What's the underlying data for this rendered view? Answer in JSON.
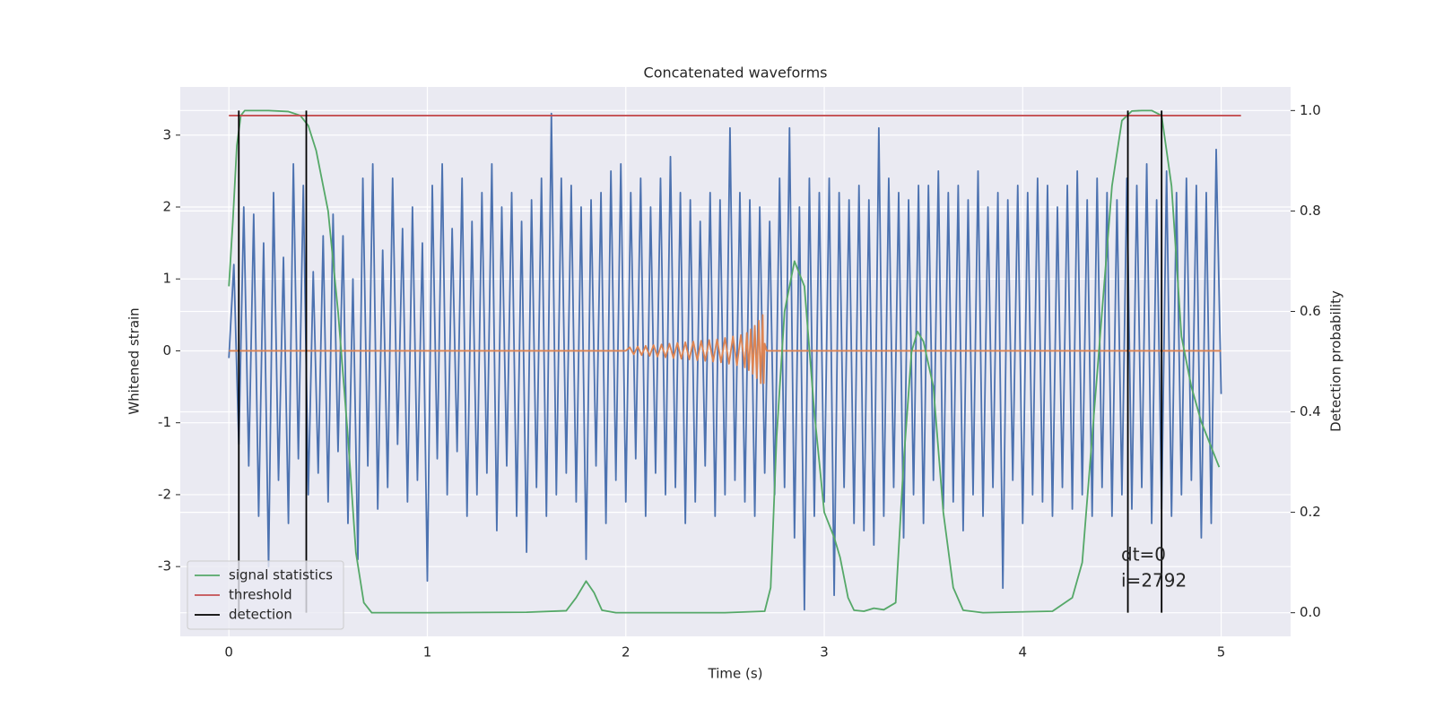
{
  "chart_data": {
    "type": "line",
    "title": "Concatenated waveforms",
    "xlabel": "Time (s)",
    "ylabel": "Whitened strain",
    "y2label": "Detection probability",
    "xlim": [
      -0.245,
      5.35
    ],
    "ylim": [
      -3.97,
      3.67
    ],
    "y2lim": [
      -0.047,
      1.047
    ],
    "xticks": [
      0,
      1,
      2,
      3,
      4,
      5
    ],
    "yticks": [
      -3,
      -2,
      -1,
      0,
      1,
      2,
      3
    ],
    "y2ticks": [
      {
        "value": 0,
        "label": "0.0"
      },
      0.2,
      0.4,
      0.6,
      0.8,
      {
        "value": 1,
        "label": "1.0"
      }
    ],
    "grid": true,
    "legend": "lower left",
    "annotations": [
      "dt=0",
      "i=2792"
    ],
    "series": [
      {
        "color": "#4c72b0",
        "x": [
          0,
          0.025,
          0.05,
          0.075,
          0.1,
          0.125,
          0.15,
          0.175,
          0.2,
          0.225,
          0.25,
          0.275,
          0.3,
          0.325,
          0.35,
          0.375,
          0.4,
          0.425,
          0.45,
          0.475,
          0.5,
          0.525,
          0.55,
          0.575,
          0.6,
          0.625,
          0.65,
          0.675,
          0.7,
          0.725,
          0.75,
          0.775,
          0.8,
          0.825,
          0.85,
          0.875,
          0.9,
          0.925,
          0.95,
          0.975,
          1,
          1.025,
          1.05,
          1.075,
          1.1,
          1.125,
          1.15,
          1.175,
          1.2,
          1.225,
          1.25,
          1.275,
          1.3,
          1.325,
          1.35,
          1.375,
          1.4,
          1.425,
          1.45,
          1.475,
          1.5,
          1.525,
          1.55,
          1.575,
          1.6,
          1.625,
          1.65,
          1.675,
          1.7,
          1.725,
          1.75,
          1.775,
          1.8,
          1.825,
          1.85,
          1.875,
          1.9,
          1.925,
          1.95,
          1.975,
          2,
          2.025,
          2.05,
          2.075,
          2.1,
          2.125,
          2.15,
          2.175,
          2.2,
          2.225,
          2.25,
          2.275,
          2.3,
          2.325,
          2.35,
          2.375,
          2.4,
          2.425,
          2.45,
          2.475,
          2.5,
          2.525,
          2.55,
          2.575,
          2.6,
          2.625,
          2.65,
          2.675,
          2.7,
          2.725,
          2.75,
          2.775,
          2.8,
          2.825,
          2.85,
          2.875,
          2.9,
          2.925,
          2.95,
          2.975,
          3,
          3.025,
          3.05,
          3.075,
          3.1,
          3.125,
          3.15,
          3.175,
          3.2,
          3.225,
          3.25,
          3.275,
          3.3,
          3.325,
          3.35,
          3.375,
          3.4,
          3.425,
          3.45,
          3.475,
          3.5,
          3.525,
          3.55,
          3.575,
          3.6,
          3.625,
          3.65,
          3.675,
          3.7,
          3.725,
          3.75,
          3.775,
          3.8,
          3.825,
          3.85,
          3.875,
          3.9,
          3.925,
          3.95,
          3.975,
          4,
          4.025,
          4.05,
          4.075,
          4.1,
          4.125,
          4.15,
          4.175,
          4.2,
          4.225,
          4.25,
          4.275,
          4.3,
          4.325,
          4.35,
          4.375,
          4.4,
          4.425,
          4.45,
          4.475,
          4.5,
          4.525,
          4.55,
          4.575,
          4.6,
          4.625,
          4.65,
          4.675,
          4.7,
          4.725,
          4.75,
          4.775,
          4.8,
          4.825,
          4.85,
          4.875,
          4.9,
          4.925,
          4.95,
          4.975,
          5
        ],
        "values": [
          -0.1,
          1.2,
          -1.3,
          2.0,
          -1.6,
          1.9,
          -2.3,
          1.5,
          -3.0,
          2.2,
          -1.8,
          1.3,
          -2.4,
          2.6,
          -1.5,
          2.3,
          -2.0,
          1.1,
          -1.7,
          1.6,
          -2.1,
          1.9,
          -1.4,
          1.6,
          -2.4,
          1.0,
          -2.9,
          2.4,
          -1.6,
          2.6,
          -2.2,
          1.4,
          -1.9,
          2.4,
          -1.3,
          1.7,
          -2.1,
          2.0,
          -1.8,
          1.5,
          -3.2,
          2.3,
          -1.5,
          2.6,
          -2.0,
          1.7,
          -1.4,
          2.4,
          -2.3,
          1.8,
          -2.0,
          2.2,
          -1.7,
          2.6,
          -2.5,
          2.0,
          -1.6,
          2.2,
          -2.3,
          1.8,
          -2.8,
          2.1,
          -1.9,
          2.4,
          -2.3,
          3.3,
          -2.0,
          2.4,
          -1.7,
          2.3,
          -2.1,
          2.0,
          -2.9,
          2.1,
          -1.6,
          2.2,
          -2.4,
          2.5,
          -1.8,
          2.6,
          -2.1,
          2.2,
          -1.5,
          2.4,
          -2.3,
          2.0,
          -1.7,
          2.4,
          -2.0,
          2.7,
          -1.9,
          2.2,
          -2.4,
          2.1,
          -2.1,
          1.8,
          -1.6,
          2.2,
          -2.3,
          2.1,
          -2.0,
          3.1,
          -1.8,
          2.2,
          -2.1,
          2.1,
          -2.3,
          2.0,
          -1.7,
          1.8,
          -2.0,
          2.4,
          -1.9,
          3.1,
          -2.6,
          2.0,
          -3.6,
          2.4,
          -2.3,
          2.2,
          -2.1,
          2.4,
          -3.4,
          2.2,
          -1.9,
          2.1,
          -2.4,
          2.3,
          -2.5,
          2.1,
          -2.7,
          3.1,
          -2.3,
          2.4,
          -1.9,
          2.2,
          -2.6,
          2.1,
          -2.0,
          2.3,
          -2.4,
          2.3,
          -1.8,
          2.5,
          -2.2,
          2.2,
          -2.1,
          2.3,
          -2.5,
          2.1,
          -2.0,
          2.5,
          -2.3,
          2.0,
          -1.9,
          2.2,
          -3.3,
          2.1,
          -1.8,
          2.3,
          -2.4,
          2.2,
          -2.0,
          2.4,
          -2.1,
          2.3,
          -2.3,
          2.0,
          -1.9,
          2.3,
          -2.2,
          2.5,
          -2.0,
          2.1,
          -2.3,
          2.4,
          -1.9,
          2.2,
          -2.3,
          2.1,
          -2.0,
          2.4,
          -2.2,
          2.3,
          -1.9,
          2.6,
          -2.4,
          2.1,
          -2.2,
          2.5,
          -2.3,
          2.2,
          -2.0,
          2.4,
          -1.8,
          2.3,
          -2.6,
          2.2,
          -2.4,
          2.8,
          -0.6
        ]
      },
      {
        "color": "#dd8452",
        "x": [
          0,
          2,
          2.02,
          2.04,
          2.06,
          2.08,
          2.1,
          2.12,
          2.14,
          2.16,
          2.18,
          2.2,
          2.22,
          2.24,
          2.26,
          2.28,
          2.3,
          2.32,
          2.34,
          2.36,
          2.38,
          2.4,
          2.42,
          2.44,
          2.46,
          2.48,
          2.5,
          2.52,
          2.54,
          2.56,
          2.58,
          2.6,
          2.61,
          2.62,
          2.63,
          2.64,
          2.65,
          2.66,
          2.67,
          2.68,
          2.69,
          2.695,
          2.7,
          2.71,
          5
        ],
        "values": [
          0,
          0,
          0.05,
          -0.05,
          0.06,
          -0.06,
          0.07,
          -0.07,
          0.08,
          -0.08,
          0.09,
          -0.09,
          0.1,
          -0.1,
          0.11,
          -0.11,
          0.12,
          -0.12,
          0.13,
          -0.13,
          0.14,
          -0.14,
          0.15,
          -0.15,
          0.16,
          -0.16,
          0.18,
          -0.18,
          0.2,
          -0.2,
          0.22,
          -0.23,
          0.25,
          -0.27,
          0.3,
          -0.32,
          0.35,
          -0.38,
          0.42,
          -0.45,
          0.5,
          -0.45,
          0.1,
          0,
          0
        ]
      },
      {
        "name": "signal statistics",
        "color": "#55a868",
        "axis": "y2",
        "x": [
          0,
          0.02,
          0.04,
          0.06,
          0.08,
          0.2,
          0.3,
          0.36,
          0.4,
          0.44,
          0.5,
          0.55,
          0.6,
          0.64,
          0.68,
          0.72,
          1,
          1.5,
          1.7,
          1.75,
          1.8,
          1.84,
          1.88,
          1.95,
          2.5,
          2.7,
          2.73,
          2.76,
          2.8,
          2.85,
          2.9,
          2.95,
          3,
          3.05,
          3.08,
          3.12,
          3.15,
          3.2,
          3.25,
          3.3,
          3.36,
          3.4,
          3.44,
          3.47,
          3.5,
          3.55,
          3.6,
          3.65,
          3.7,
          3.8,
          4.15,
          4.25,
          4.3,
          4.35,
          4.4,
          4.45,
          4.5,
          4.55,
          4.6,
          4.65,
          4.7,
          4.75,
          4.8,
          4.85,
          4.9,
          4.95,
          4.99
        ],
        "values": [
          0.65,
          0.78,
          0.93,
          0.99,
          1,
          1,
          0.998,
          0.99,
          0.97,
          0.92,
          0.8,
          0.6,
          0.35,
          0.12,
          0.02,
          0,
          0,
          0.001,
          0.004,
          0.03,
          0.063,
          0.04,
          0.005,
          0,
          0,
          0.003,
          0.05,
          0.35,
          0.6,
          0.7,
          0.65,
          0.4,
          0.2,
          0.15,
          0.11,
          0.03,
          0.005,
          0.003,
          0.009,
          0.006,
          0.02,
          0.3,
          0.52,
          0.56,
          0.54,
          0.45,
          0.2,
          0.05,
          0.005,
          0,
          0.003,
          0.03,
          0.1,
          0.35,
          0.6,
          0.85,
          0.98,
          0.999,
          1,
          1,
          0.99,
          0.85,
          0.55,
          0.45,
          0.38,
          0.33,
          0.29
        ]
      },
      {
        "name": "threshold",
        "color": "#c44e52",
        "axis": "y2",
        "x": [
          0,
          5.1
        ],
        "values": [
          0.99,
          0.99
        ]
      },
      {
        "name": "detection",
        "color": "#000000",
        "axis": "y2",
        "type": "vlines",
        "x": [
          0.05,
          0.39,
          4.53,
          4.7
        ],
        "ymin": 0,
        "ymax": 1
      }
    ]
  }
}
